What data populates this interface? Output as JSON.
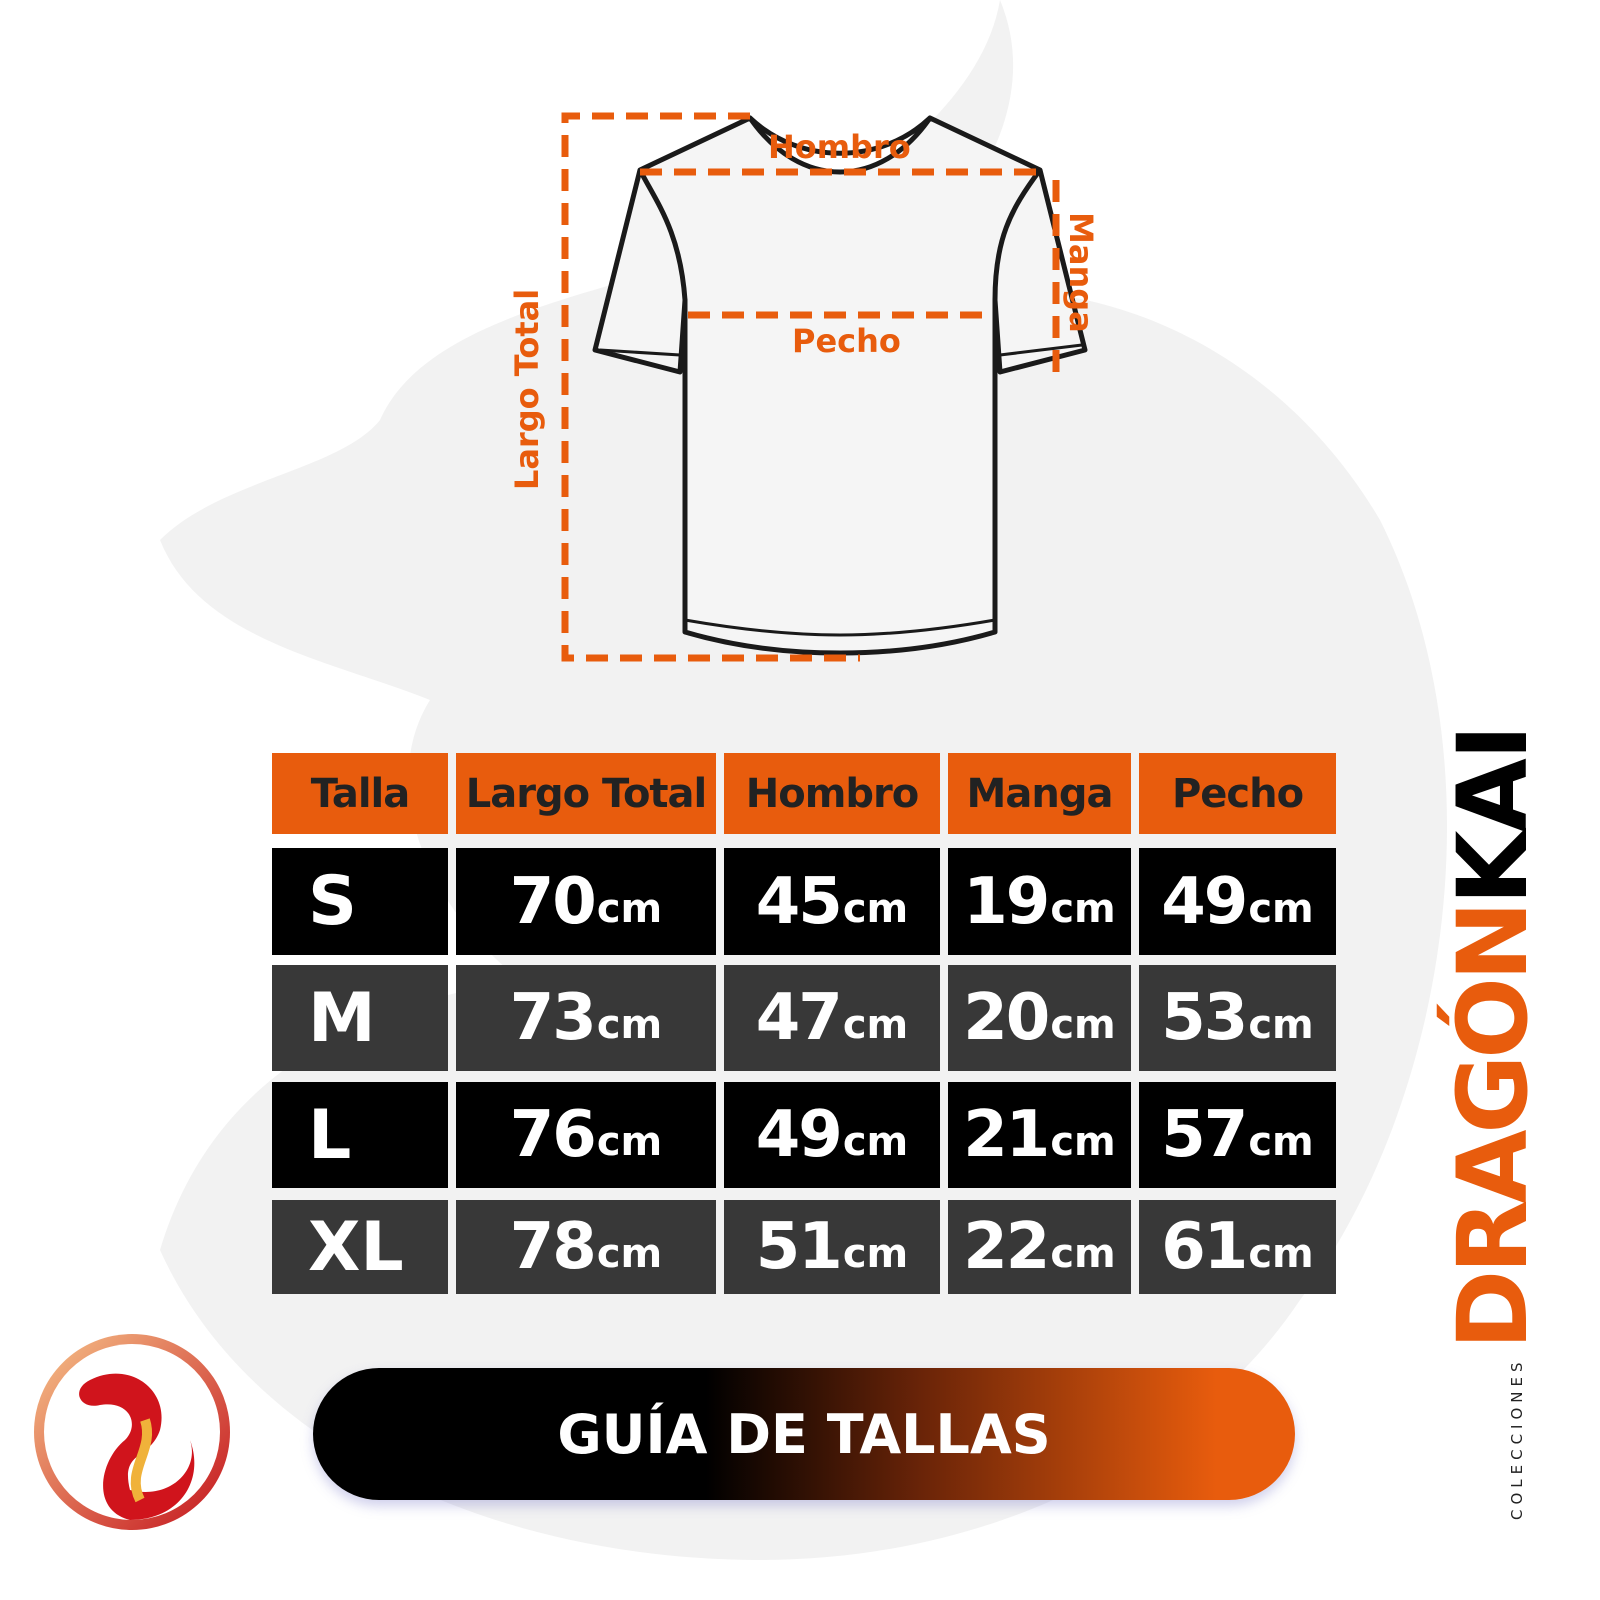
{
  "diagram": {
    "labels": {
      "hombro": "Hombro",
      "pecho": "Pecho",
      "manga": "Manga",
      "largo": "Largo Total"
    }
  },
  "table": {
    "headers": [
      "Talla",
      "Largo Total",
      "Hombro",
      "Manga",
      "Pecho"
    ],
    "unit": "cm",
    "rows": [
      {
        "size": "S",
        "values": [
          "70",
          "45",
          "19",
          "49"
        ]
      },
      {
        "size": "M",
        "values": [
          "73",
          "47",
          "20",
          "53"
        ]
      },
      {
        "size": "L",
        "values": [
          "76",
          "49",
          "21",
          "57"
        ]
      },
      {
        "size": "XL",
        "values": [
          "78",
          "51",
          "22",
          "61"
        ]
      }
    ]
  },
  "banner": {
    "title": "GUÍA DE TALLAS"
  },
  "brand": {
    "prefix": "COLECCIONES",
    "name_part1": "DRAGÓN",
    "name_part2": "KAI"
  },
  "colors": {
    "accent": "#e85c0d",
    "row_dark": "#000000",
    "row_gray": "#383838"
  }
}
